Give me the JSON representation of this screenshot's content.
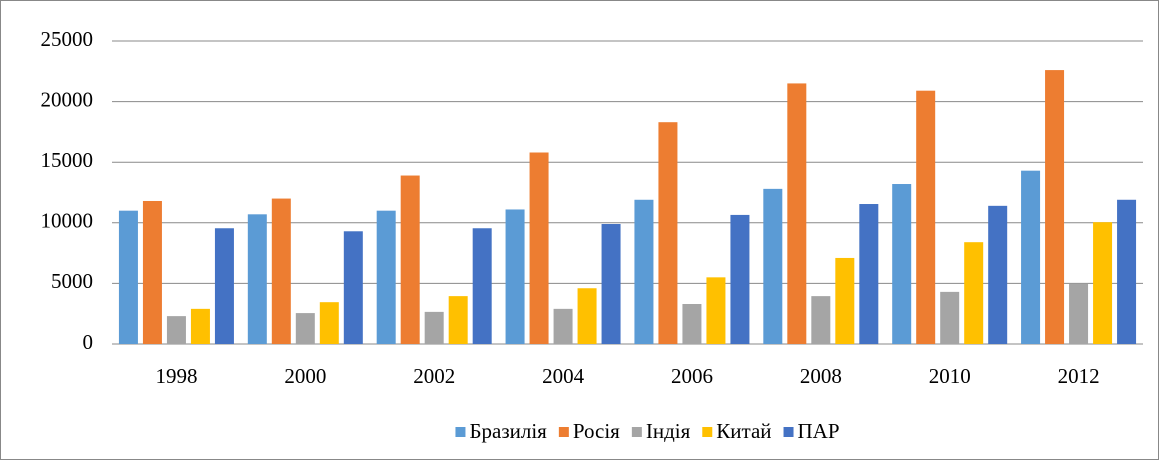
{
  "chart_data": {
    "type": "bar",
    "categories": [
      "1998",
      "2000",
      "2002",
      "2004",
      "2006",
      "2008",
      "2010",
      "2012"
    ],
    "series": [
      {
        "name": "Бразилія",
        "color": "#5b9bd5",
        "values": [
          11000,
          10700,
          11000,
          11100,
          11900,
          12800,
          13200,
          14300
        ]
      },
      {
        "name": "Росія",
        "color": "#ed7d31",
        "values": [
          11800,
          12000,
          13900,
          15800,
          18300,
          21500,
          20900,
          22600
        ]
      },
      {
        "name": "Індія",
        "color": "#a5a5a5",
        "values": [
          2300,
          2550,
          2650,
          2900,
          3300,
          3950,
          4300,
          4950
        ]
      },
      {
        "name": "Китай",
        "color": "#ffc000",
        "values": [
          2900,
          3450,
          3950,
          4600,
          5500,
          7100,
          8400,
          10050
        ]
      },
      {
        "name": "ПАР",
        "color": "#4472c4",
        "values": [
          9550,
          9300,
          9550,
          9900,
          10650,
          11550,
          11400,
          11900
        ]
      }
    ],
    "ylim": [
      0,
      25000
    ],
    "yticks": [
      0,
      5000,
      10000,
      15000,
      20000,
      25000
    ],
    "grid": true,
    "legend": "bottom"
  }
}
